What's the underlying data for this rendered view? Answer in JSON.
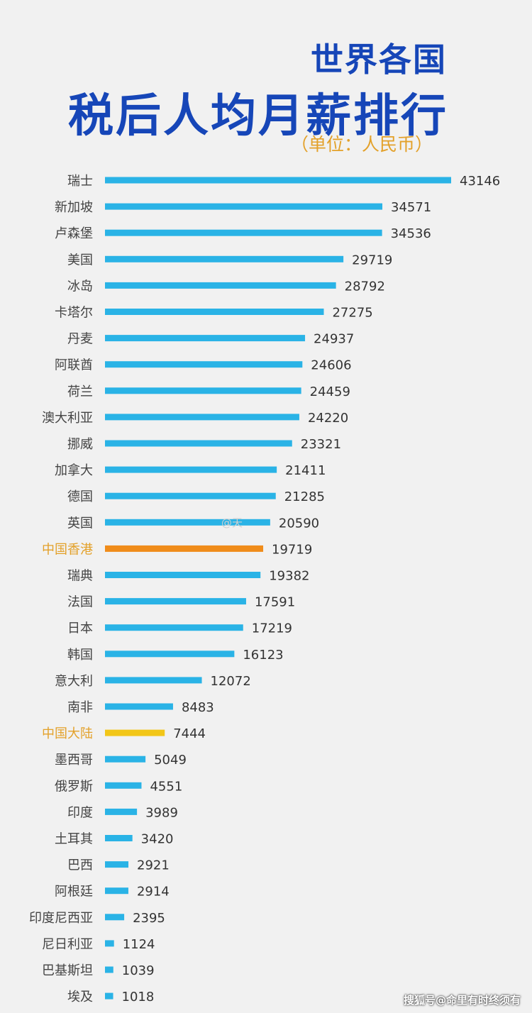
{
  "header": {
    "title_line1": "世界各国",
    "title_line2": "税后人均月薪排行",
    "unit": "（单位：人民币）"
  },
  "watermarks": {
    "inline": "@天",
    "footer": "搜狐号@命里有时终须有"
  },
  "colors": {
    "title": "#1646b8",
    "bar": "#2ab3e6",
    "hongkong": "#f08c1a",
    "mainland": "#f2c618",
    "label_default": "#444444",
    "label_highlight": "#e3a12a",
    "value": "#333333",
    "background": "#f1f1f1"
  },
  "chart_data": {
    "type": "bar",
    "orientation": "horizontal",
    "title": "世界各国税后人均月薪排行",
    "unit_label": "（单位：人民币）",
    "xlim": [
      0,
      43146
    ],
    "categories": [
      "瑞士",
      "新加坡",
      "卢森堡",
      "美国",
      "冰岛",
      "卡塔尔",
      "丹麦",
      "阿联酋",
      "荷兰",
      "澳大利亚",
      "挪威",
      "加拿大",
      "德国",
      "英国",
      "中国香港",
      "瑞典",
      "法国",
      "日本",
      "韩国",
      "意大利",
      "南非",
      "中国大陆",
      "墨西哥",
      "俄罗斯",
      "印度",
      "土耳其",
      "巴西",
      "阿根廷",
      "印度尼西亚",
      "尼日利亚",
      "巴基斯坦",
      "埃及"
    ],
    "values": [
      43146,
      34571,
      34536,
      29719,
      28792,
      27275,
      24937,
      24606,
      24459,
      24220,
      23321,
      21411,
      21285,
      20590,
      19719,
      19382,
      17591,
      17219,
      16123,
      12072,
      8483,
      7444,
      5049,
      4551,
      3989,
      3420,
      2921,
      2914,
      2395,
      1124,
      1039,
      1018
    ],
    "value_labels": [
      "43146",
      "34571",
      "34536",
      "29719",
      "28792",
      "27275",
      "24937",
      "24606",
      "24459",
      "24220",
      "23321",
      "21411",
      "21285",
      "20590",
      "19719",
      "19382",
      "17591",
      "17219",
      "16123",
      "12072",
      "8483",
      "7444",
      "5049",
      "4551",
      "3989",
      "3420",
      "2921",
      "2914",
      "2395",
      "1124",
      "1039",
      "1018"
    ],
    "highlight": {
      "中国香港": "hongkong",
      "中国大陆": "mainland"
    }
  }
}
